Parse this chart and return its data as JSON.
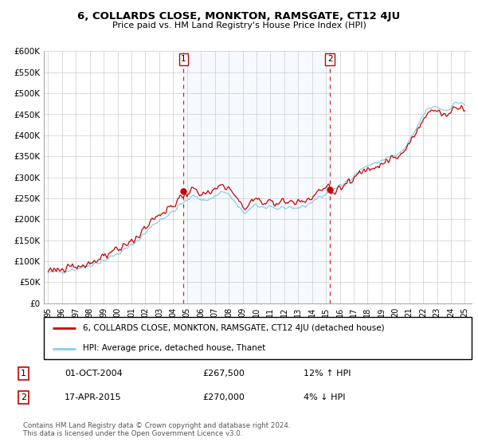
{
  "title": "6, COLLARDS CLOSE, MONKTON, RAMSGATE, CT12 4JU",
  "subtitle": "Price paid vs. HM Land Registry's House Price Index (HPI)",
  "legend_line1": "6, COLLARDS CLOSE, MONKTON, RAMSGATE, CT12 4JU (detached house)",
  "legend_line2": "HPI: Average price, detached house, Thanet",
  "annotation1_label": "1",
  "annotation1_date": "01-OCT-2004",
  "annotation1_price": "£267,500",
  "annotation1_hpi": "12% ↑ HPI",
  "annotation2_label": "2",
  "annotation2_date": "17-APR-2015",
  "annotation2_price": "£270,000",
  "annotation2_hpi": "4% ↓ HPI",
  "footer": "Contains HM Land Registry data © Crown copyright and database right 2024.\nThis data is licensed under the Open Government Licence v3.0.",
  "sale_color": "#cc0000",
  "hpi_color": "#87CEEB",
  "shade_color": "#ddeeff",
  "dashed_line_color": "#cc0000",
  "background_color": "#ffffff",
  "ylim": [
    0,
    600000
  ],
  "yticks": [
    0,
    50000,
    100000,
    150000,
    200000,
    250000,
    300000,
    350000,
    400000,
    450000,
    500000,
    550000,
    600000
  ],
  "sale1_x": 2004.75,
  "sale1_y": 267500,
  "sale2_x": 2015.29,
  "sale2_y": 270000,
  "xlim_start": 1994.7,
  "xlim_end": 2025.5
}
